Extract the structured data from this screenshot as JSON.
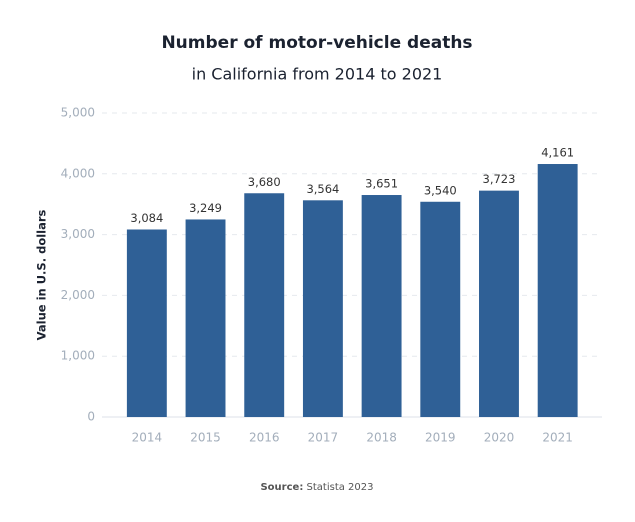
{
  "chart_data": {
    "type": "bar",
    "title": "Number of motor-vehicle deaths",
    "subtitle": "in California from 2014 to 2021",
    "y_label": "Value in U.S. dollars",
    "source_label": "Source:",
    "source": "Statista 2023",
    "categories": [
      "2014",
      "2015",
      "2016",
      "2017",
      "2018",
      "2019",
      "2020",
      "2021"
    ],
    "values": [
      3084,
      3249,
      3680,
      3564,
      3651,
      3540,
      3723,
      4161
    ],
    "value_labels": [
      "3,084",
      "3,249",
      "3,680",
      "3,564",
      "3,651",
      "3,540",
      "3,723",
      "4,161"
    ],
    "color": "#2f6096",
    "ylim": [
      0,
      5000
    ],
    "yticks": [
      0,
      {
        "value": 1000,
        "label": "1,000"
      },
      {
        "value": 2000,
        "label": "2,000"
      },
      {
        "value": 3000,
        "label": "3,000"
      },
      {
        "value": 4000,
        "label": "4,000"
      },
      {
        "value": 5000,
        "label": "5,000"
      }
    ],
    "grid": true
  }
}
